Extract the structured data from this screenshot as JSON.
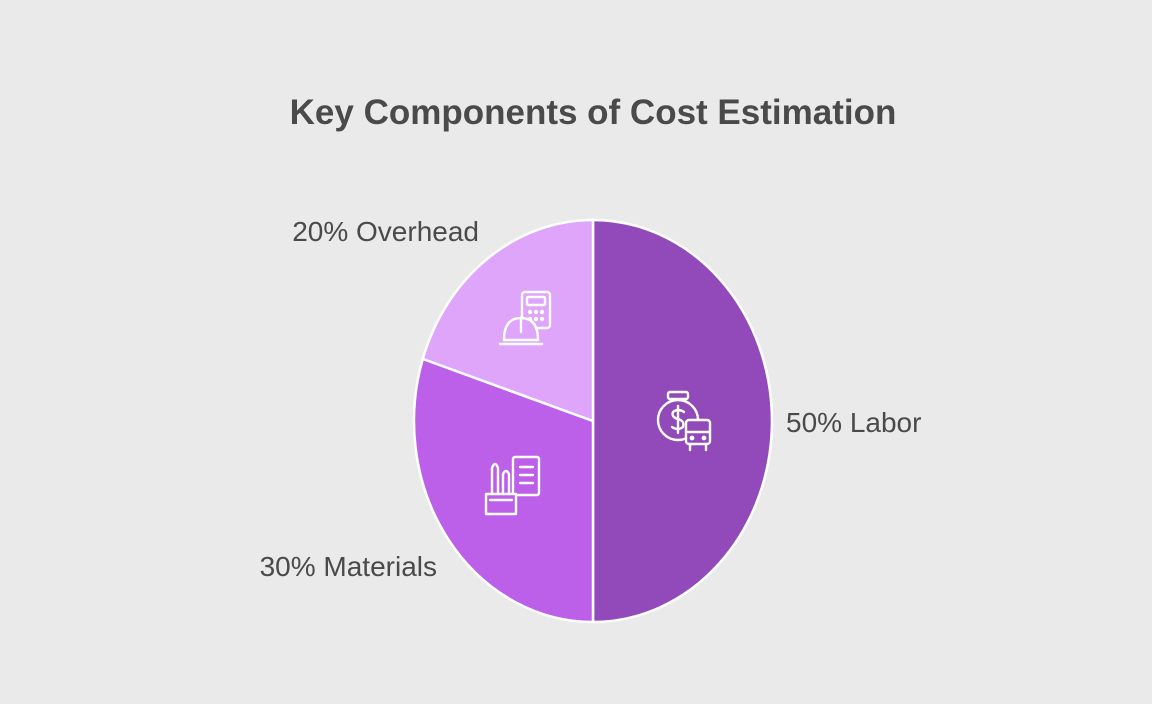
{
  "chart_data": {
    "type": "pie",
    "title": "Key Components of Cost Estimation",
    "slices": [
      {
        "label": "Labor",
        "value": 50,
        "display": "50% Labor",
        "color": "#9249b9",
        "icon": "stopwatch-dollar-bus-icon"
      },
      {
        "label": "Materials",
        "value": 30,
        "display": "30% Materials",
        "color": "#bc5fe9",
        "icon": "materials-tools-document-icon"
      },
      {
        "label": "Overhead",
        "value": 20,
        "display": "20% Overhead",
        "color": "#dea5fb",
        "icon": "calculator-hardhat-icon"
      }
    ]
  },
  "colors": {
    "background": "#ebeaeb",
    "text": "#4a4a4a",
    "slice_border": "#ffffff"
  }
}
